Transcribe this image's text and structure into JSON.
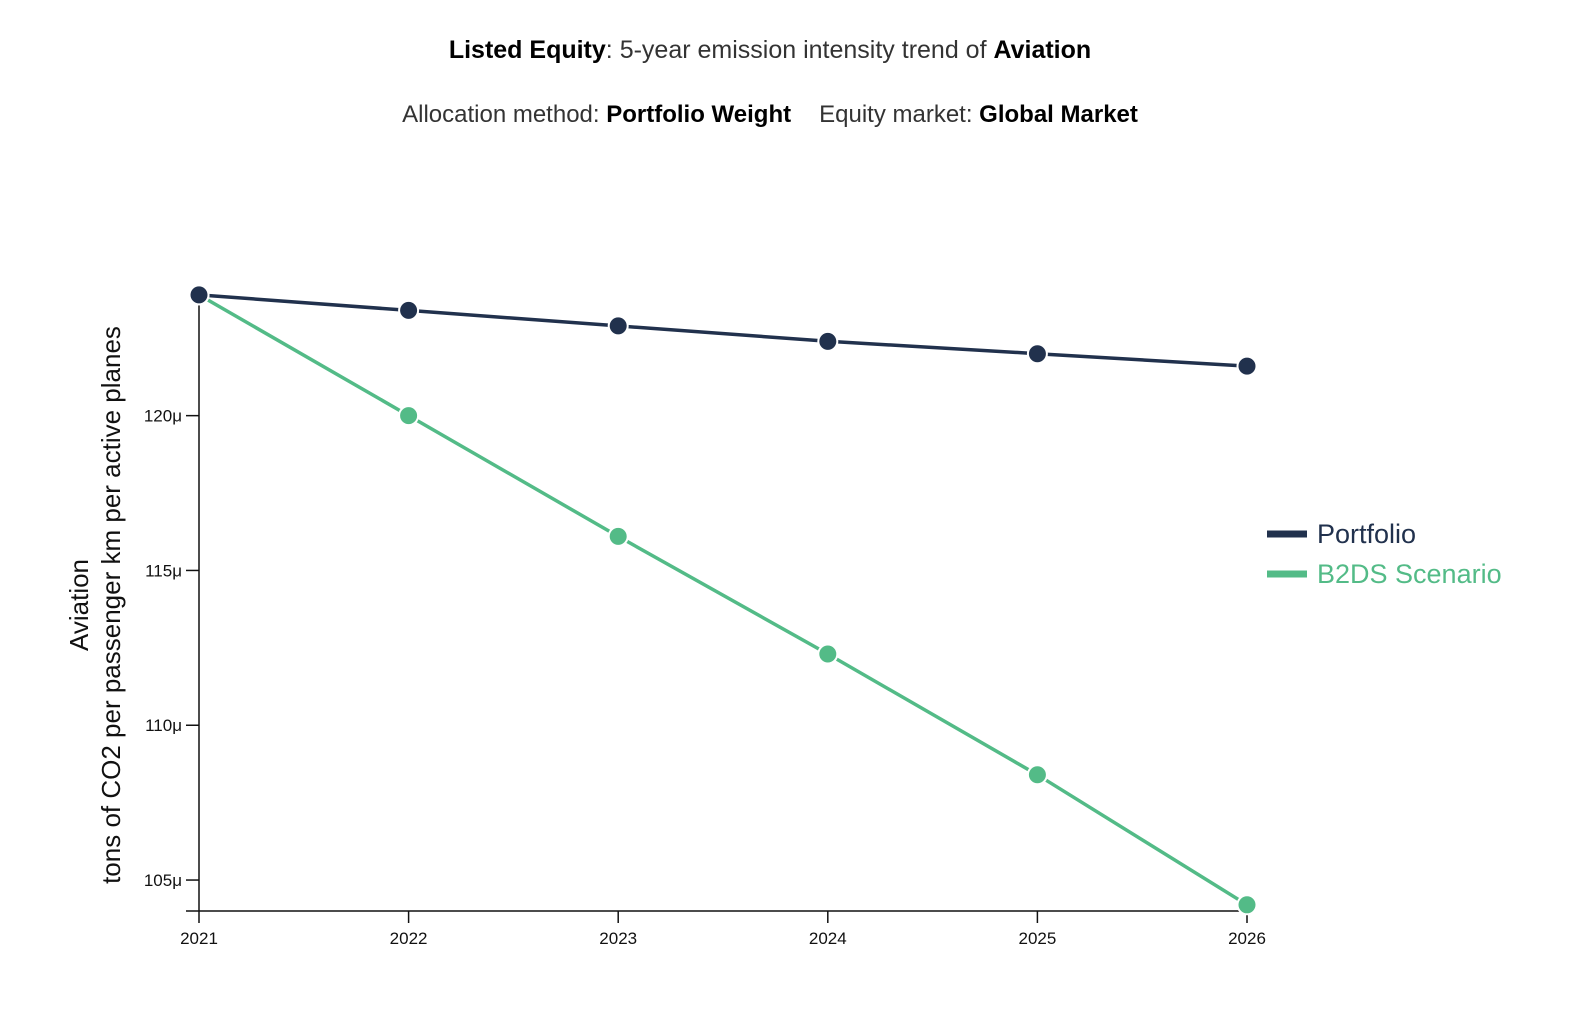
{
  "header": {
    "title_bold_1": "Listed Equity",
    "title_mid": ": 5-year emission intensity trend of ",
    "title_bold_2": "Aviation",
    "alloc_label": "Allocation method: ",
    "alloc_value": "Portfolio Weight",
    "market_label": "Equity market: ",
    "market_value": "Global Market"
  },
  "colors": {
    "portfolio": "#21314d",
    "scenario": "#53bb87",
    "axis": "#111111"
  },
  "chart_data": {
    "type": "line",
    "x": [
      2021,
      2022,
      2023,
      2024,
      2025,
      2026
    ],
    "x_tick_labels": [
      "2021",
      "2022",
      "2023",
      "2024",
      "2025",
      "2026"
    ],
    "ylabel_line1": "Aviation",
    "ylabel_line2": "tons of CO2 per passenger km per active planes",
    "ylim": [
      0.000104,
      0.0001238
    ],
    "y_ticks": [
      0.000105,
      0.00011,
      0.000115,
      0.00012
    ],
    "y_tick_labels": [
      "105μ",
      "110μ",
      "115μ",
      "120μ"
    ],
    "legend_position": "right",
    "series": [
      {
        "name": "Portfolio",
        "color_key": "portfolio",
        "values": [
          0.0001239,
          0.0001234,
          0.0001229,
          0.0001224,
          0.000122,
          0.0001216
        ]
      },
      {
        "name": "B2DS Scenario",
        "color_key": "scenario",
        "values": [
          0.0001239,
          0.00012,
          0.0001161,
          0.0001123,
          0.0001084,
          0.0001042
        ]
      }
    ]
  }
}
